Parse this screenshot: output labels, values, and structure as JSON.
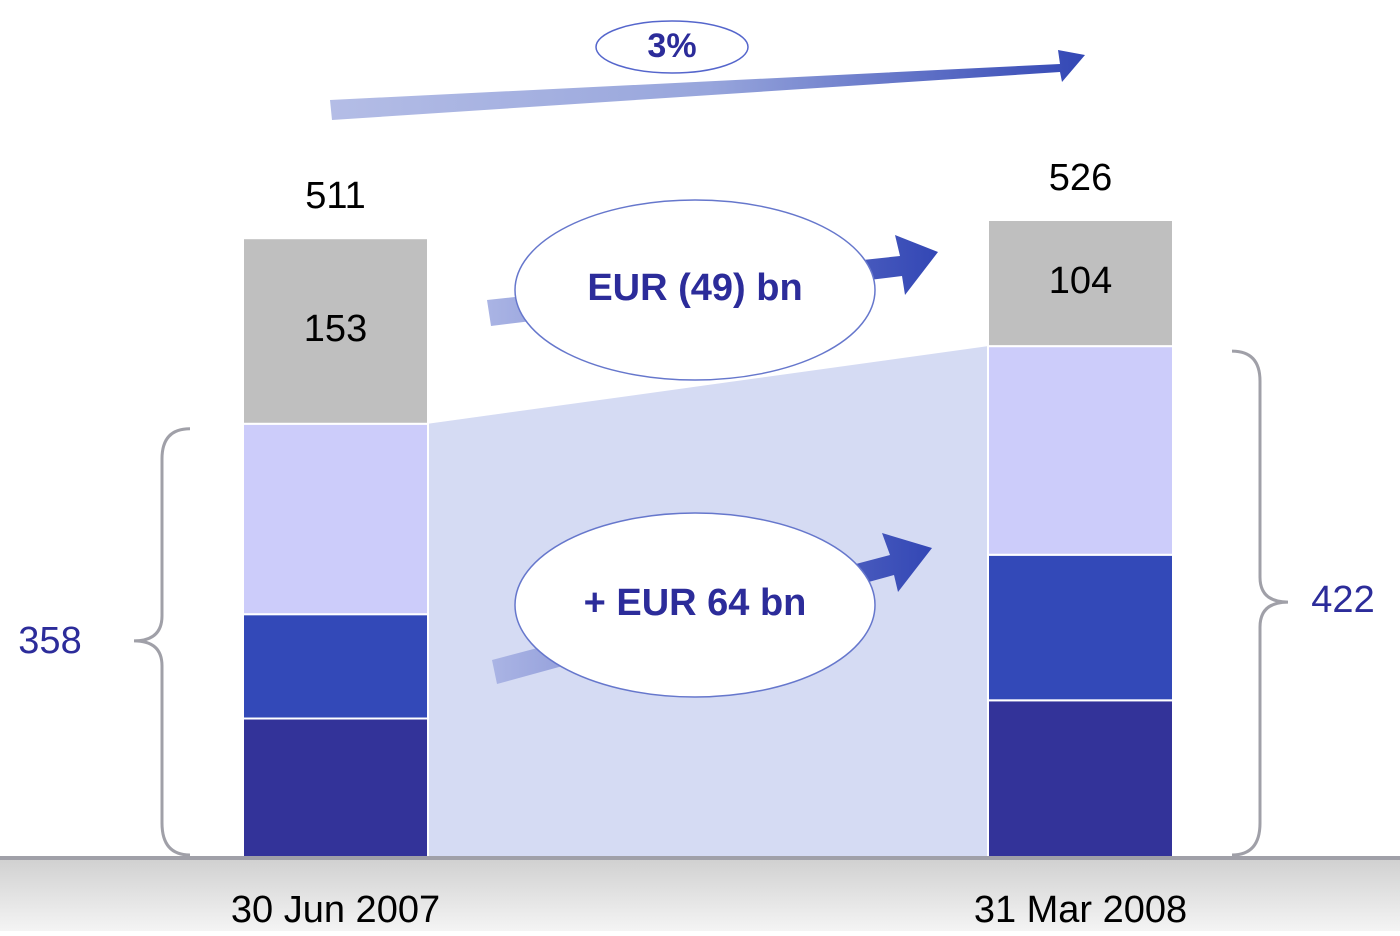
{
  "chart_data": {
    "type": "stacked_bar",
    "categories": [
      "30 Jun 2007",
      "31 Mar 2008"
    ],
    "series": [
      {
        "color": "#333399",
        "values": [
          115,
          130
        ]
      },
      {
        "color": "#3349b8",
        "values": [
          86,
          120
        ]
      },
      {
        "color": "#ccccfa",
        "values": [
          157,
          172
        ]
      },
      {
        "color": "#bfbfbf",
        "values": [
          153,
          104
        ]
      }
    ],
    "totals": [
      511,
      526
    ],
    "bracket_labels": [
      358,
      422
    ],
    "annotations": [
      "3%",
      "EUR (49) bn",
      "+ EUR 64 bn"
    ]
  }
}
